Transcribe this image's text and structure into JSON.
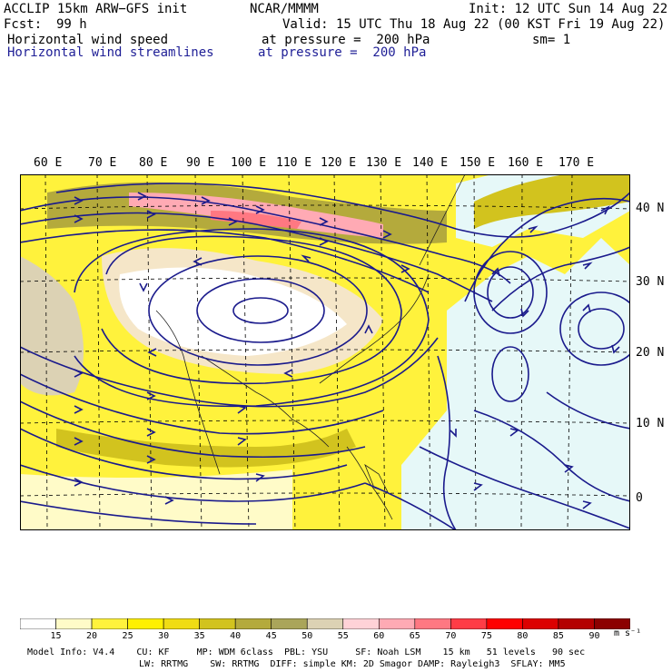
{
  "header": {
    "model": "ACCLIP 15km ARW−GFS init",
    "org": "NCAR/MMMM",
    "init": "Init: 12 UTC Sun 14 Aug 22",
    "fcst_label": "Fcst:",
    "fcst_value": "99 h",
    "valid": "Valid: 15 UTC Thu 18 Aug 22 (00 KST Fri 19 Aug 22)",
    "field1": "Horizontal wind speed",
    "field1_level": "at pressure =  200 hPa",
    "smoothing": "sm= 1",
    "field2": "Horizontal wind streamlines",
    "field2_level": "at pressure =  200 hPa"
  },
  "map": {
    "lon_labels": [
      "60 E",
      "70 E",
      "80 E",
      "90 E",
      "100 E",
      "110 E",
      "120 E",
      "130 E",
      "140 E",
      "150 E",
      "160 E",
      "170 E"
    ],
    "lat_labels": [
      "40 N",
      "30 N",
      "20 N",
      "10 N",
      "0"
    ],
    "streamline_color": "#1a1a8c",
    "coast_color": "#000000"
  },
  "colorbar": {
    "levels": [
      "15",
      "20",
      "25",
      "30",
      "35",
      "40",
      "45",
      "50",
      "55",
      "60",
      "65",
      "70",
      "75",
      "80",
      "85",
      "90"
    ],
    "colors": [
      "#ffffff",
      "#fffbc8",
      "#fff23c",
      "#fff000",
      "#f0dc14",
      "#d2c31e",
      "#b4aa3c",
      "#aaa55a",
      "#dcd2b4",
      "#ffd2d7",
      "#ffaab4",
      "#ff7882",
      "#ff3c46",
      "#ff0000",
      "#dc0000",
      "#b40000",
      "#8c0000"
    ],
    "units": "m s⁻¹"
  },
  "footer": {
    "line1": "Model Info: V4.4    CU: KF     MP: WDM 6class  PBL: YSU     SF: Noah LSM    15 km   51 levels   90 sec",
    "line2": "LW: RRTMG    SW: RRTMG  DIFF: simple KM: 2D Smagor DAMP: Rayleigh3  SFLAY: MM5"
  }
}
